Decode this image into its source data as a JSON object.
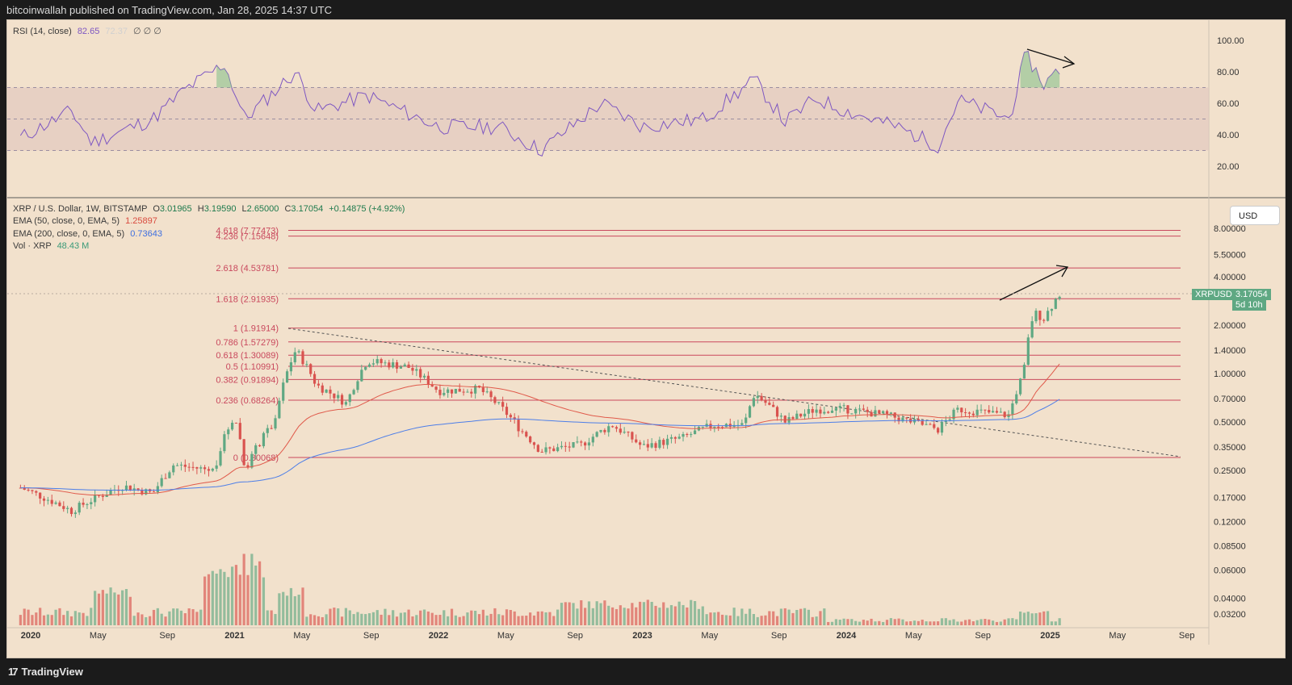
{
  "header": {
    "published_text": "bitcoinwallah published on TradingView.com, Jan 28, 2025 14:37 UTC"
  },
  "footer": {
    "brand": "TradingView",
    "logo_glyph": "17"
  },
  "rsi_legend": {
    "label": "RSI (14, close)",
    "value": "82.65",
    "ma_value": "72.37",
    "extras": "∅ ∅ ∅"
  },
  "price_legend": {
    "symbol_line": "XRP / U.S. Dollar, 1W, BITSTAMP",
    "o_label": "O",
    "o": "3.01965",
    "h_label": "H",
    "h": "3.19590",
    "l_label": "L",
    "l": "2.65000",
    "c_label": "C",
    "c": "3.17054",
    "change": "+0.14875 (+4.92%)",
    "ema50_label": "EMA (50, close, 0, EMA, 5)",
    "ema50_value": "1.25897",
    "ema200_label": "EMA (200, close, 0, EMA, 5)",
    "ema200_value": "0.73643",
    "vol_label": "Vol · XRP",
    "vol_value": "48.43 M"
  },
  "currency_button": "USD",
  "price_tag": {
    "symbol": "XRPUSD",
    "price": "3.17054",
    "countdown": "5d 10h"
  },
  "colors": {
    "up": "#5fa883",
    "down": "#d9534f",
    "ema50": "#e05a4b",
    "ema200": "#4d7ee8",
    "rsi": "#7e57c2",
    "fib": "#c9485d"
  },
  "chart_data": {
    "type": "candlestick",
    "title": "XRP / U.S. Dollar, 1W, BITSTAMP",
    "y_scale": "log",
    "x_axis_ticks": [
      "2020",
      "May",
      "Sep",
      "2021",
      "May",
      "Sep",
      "2022",
      "May",
      "Sep",
      "2023",
      "May",
      "Sep",
      "2024",
      "May",
      "Sep",
      "2025",
      "May",
      "Sep"
    ],
    "price_axis_ticks": [
      "8.00000",
      "5.50000",
      "4.00000",
      "2.00000",
      "1.40000",
      "1.00000",
      "0.70000",
      "0.50000",
      "0.35000",
      "0.25000",
      "0.17000",
      "0.12000",
      "0.08500",
      "0.06000",
      "0.04000",
      "0.03200"
    ],
    "rsi_axis_ticks": [
      "100.00",
      "80.00",
      "60.00",
      "40.00",
      "20.00"
    ],
    "fib_levels": [
      {
        "ratio": "4.618",
        "price": "7.77473"
      },
      {
        "ratio": "4.236",
        "price": "7.15648"
      },
      {
        "ratio": "2.618",
        "price": "4.53781"
      },
      {
        "ratio": "1.618",
        "price": "2.91935"
      },
      {
        "ratio": "1",
        "price": "1.91914"
      },
      {
        "ratio": "0.786",
        "price": "1.57279"
      },
      {
        "ratio": "0.618",
        "price": "1.30089"
      },
      {
        "ratio": "0.5",
        "price": "1.10991"
      },
      {
        "ratio": "0.382",
        "price": "0.91894"
      },
      {
        "ratio": "0.236",
        "price": "0.68264"
      },
      {
        "ratio": "0",
        "price": "0.30068"
      }
    ],
    "price_anchors": [
      {
        "time": 2019.95,
        "price": 0.195
      },
      {
        "time": 2020.2,
        "price": 0.14
      },
      {
        "time": 2020.45,
        "price": 0.2
      },
      {
        "time": 2020.6,
        "price": 0.18
      },
      {
        "time": 2020.7,
        "price": 0.27
      },
      {
        "time": 2020.9,
        "price": 0.25
      },
      {
        "time": 2021.0,
        "price": 0.55
      },
      {
        "time": 2021.05,
        "price": 0.25
      },
      {
        "time": 2021.2,
        "price": 0.5
      },
      {
        "time": 2021.3,
        "price": 1.4
      },
      {
        "time": 2021.4,
        "price": 0.85
      },
      {
        "time": 2021.55,
        "price": 0.65
      },
      {
        "time": 2021.65,
        "price": 1.2
      },
      {
        "time": 2021.85,
        "price": 1.1
      },
      {
        "time": 2022.0,
        "price": 0.78
      },
      {
        "time": 2022.2,
        "price": 0.8
      },
      {
        "time": 2022.4,
        "price": 0.45
      },
      {
        "time": 2022.5,
        "price": 0.33
      },
      {
        "time": 2022.7,
        "price": 0.36
      },
      {
        "time": 2022.85,
        "price": 0.48
      },
      {
        "time": 2023.0,
        "price": 0.35
      },
      {
        "time": 2023.2,
        "price": 0.4
      },
      {
        "time": 2023.35,
        "price": 0.48
      },
      {
        "time": 2023.5,
        "price": 0.48
      },
      {
        "time": 2023.55,
        "price": 0.75
      },
      {
        "time": 2023.7,
        "price": 0.5
      },
      {
        "time": 2023.85,
        "price": 0.6
      },
      {
        "time": 2024.0,
        "price": 0.6
      },
      {
        "time": 2024.2,
        "price": 0.55
      },
      {
        "time": 2024.45,
        "price": 0.45
      },
      {
        "time": 2024.55,
        "price": 0.6
      },
      {
        "time": 2024.8,
        "price": 0.55
      },
      {
        "time": 2024.87,
        "price": 1.0
      },
      {
        "time": 2024.92,
        "price": 2.4
      },
      {
        "time": 2024.97,
        "price": 2.2
      },
      {
        "time": 2025.05,
        "price": 3.17
      }
    ],
    "rsi_anchors": [
      {
        "time": 2019.95,
        "value": 38
      },
      {
        "time": 2020.2,
        "value": 55
      },
      {
        "time": 2020.3,
        "value": 35
      },
      {
        "time": 2020.6,
        "value": 50
      },
      {
        "time": 2020.75,
        "value": 68
      },
      {
        "time": 2020.95,
        "value": 85
      },
      {
        "time": 2021.05,
        "value": 50
      },
      {
        "time": 2021.3,
        "value": 80
      },
      {
        "time": 2021.4,
        "value": 55
      },
      {
        "time": 2021.65,
        "value": 65
      },
      {
        "time": 2022.0,
        "value": 45
      },
      {
        "time": 2022.3,
        "value": 45
      },
      {
        "time": 2022.5,
        "value": 30
      },
      {
        "time": 2022.8,
        "value": 60
      },
      {
        "time": 2023.0,
        "value": 45
      },
      {
        "time": 2023.3,
        "value": 50
      },
      {
        "time": 2023.55,
        "value": 75
      },
      {
        "time": 2023.7,
        "value": 48
      },
      {
        "time": 2023.85,
        "value": 63
      },
      {
        "time": 2024.0,
        "value": 55
      },
      {
        "time": 2024.25,
        "value": 45
      },
      {
        "time": 2024.45,
        "value": 33
      },
      {
        "time": 2024.55,
        "value": 62
      },
      {
        "time": 2024.8,
        "value": 50
      },
      {
        "time": 2024.88,
        "value": 91
      },
      {
        "time": 2024.97,
        "value": 72
      },
      {
        "time": 2025.05,
        "value": 82
      }
    ]
  }
}
